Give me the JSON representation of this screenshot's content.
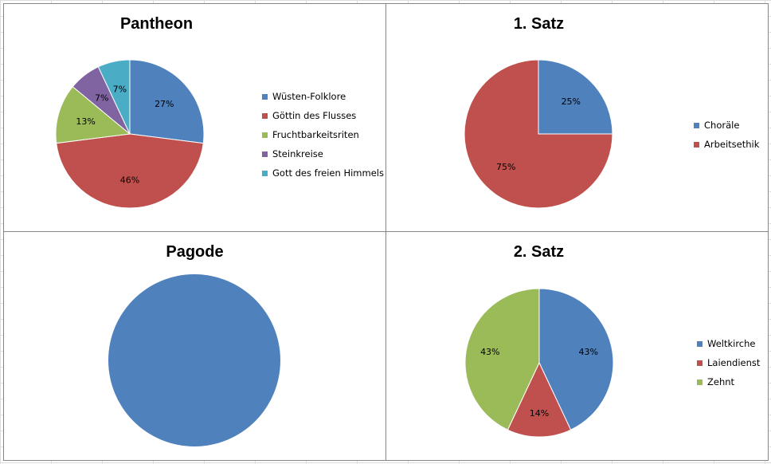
{
  "chart_data": [
    {
      "type": "pie",
      "title": "Pantheon",
      "labels": [
        "Wüsten-Folklore",
        "Göttin des Flusses",
        "Fruchtbarkeitsriten",
        "Steinkreise",
        "Gott des freien Himmels"
      ],
      "values": [
        27,
        46,
        13,
        7,
        7
      ],
      "data_labels": [
        "27%",
        "46%",
        "13%",
        "7%",
        "7%"
      ],
      "colors": [
        "#4F81BD",
        "#C0504D",
        "#9BBB59",
        "#8064A2",
        "#4BACC6"
      ],
      "legend_position": "right"
    },
    {
      "type": "pie",
      "title": "1. Satz",
      "labels": [
        "Choräle",
        "Arbeitsethik"
      ],
      "values": [
        25,
        75
      ],
      "data_labels": [
        "25%",
        "75%"
      ],
      "colors": [
        "#4F81BD",
        "#C0504D"
      ],
      "legend_position": "right"
    },
    {
      "type": "pie",
      "title": "Pagode",
      "labels": [
        ""
      ],
      "values": [
        100
      ],
      "data_labels": [
        ""
      ],
      "colors": [
        "#4F81BD"
      ],
      "legend_position": "none"
    },
    {
      "type": "pie",
      "title": "2. Satz",
      "labels": [
        "Weltkirche",
        "Laiendienst",
        "Zehnt"
      ],
      "values": [
        43,
        14,
        43
      ],
      "data_labels": [
        "43%",
        "14%",
        "43%"
      ],
      "colors": [
        "#4F81BD",
        "#C0504D",
        "#9BBB59"
      ],
      "legend_position": "right"
    }
  ]
}
